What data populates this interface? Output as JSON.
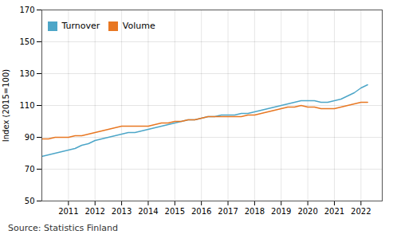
{
  "chart_data": {
    "type": "line",
    "ylabel": "Index (2015=100)",
    "caption": "Source: Statistics Finland",
    "x": [
      2010.0,
      2010.25,
      2010.5,
      2010.75,
      2011.0,
      2011.25,
      2011.5,
      2011.75,
      2012.0,
      2012.25,
      2012.5,
      2012.75,
      2013.0,
      2013.25,
      2013.5,
      2013.75,
      2014.0,
      2014.25,
      2014.5,
      2014.75,
      2015.0,
      2015.25,
      2015.5,
      2015.75,
      2016.0,
      2016.25,
      2016.5,
      2016.75,
      2017.0,
      2017.25,
      2017.5,
      2017.75,
      2018.0,
      2018.25,
      2018.5,
      2018.75,
      2019.0,
      2019.25,
      2019.5,
      2019.75,
      2020.0,
      2020.25,
      2020.5,
      2020.75,
      2021.0,
      2021.25,
      2021.5,
      2021.75,
      2022.0,
      2022.25
    ],
    "series": [
      {
        "name": "Turnover",
        "color": "#4da6c8",
        "values": [
          78,
          79,
          80,
          81,
          82,
          83,
          85,
          86,
          88,
          89,
          90,
          91,
          92,
          93,
          93,
          94,
          95,
          96,
          97,
          98,
          99,
          100,
          101,
          101,
          102,
          103,
          103,
          104,
          104,
          104,
          105,
          105,
          106,
          107,
          108,
          109,
          110,
          111,
          112,
          113,
          113,
          113,
          112,
          112,
          113,
          114,
          116,
          118,
          121,
          123
        ]
      },
      {
        "name": "Volume",
        "color": "#e87722",
        "values": [
          89,
          89,
          90,
          90,
          90,
          91,
          91,
          92,
          93,
          94,
          95,
          96,
          97,
          97,
          97,
          97,
          97,
          98,
          99,
          99,
          100,
          100,
          101,
          101,
          102,
          103,
          103,
          103,
          103,
          103,
          103,
          104,
          104,
          105,
          106,
          107,
          108,
          109,
          109,
          110,
          109,
          109,
          108,
          108,
          108,
          109,
          110,
          111,
          112,
          112
        ]
      }
    ],
    "xlim": [
      2010.0,
      2022.8
    ],
    "xticks": [
      2011,
      2012,
      2013,
      2014,
      2015,
      2016,
      2017,
      2018,
      2019,
      2020,
      2021,
      2022
    ],
    "ylim": [
      50,
      170
    ],
    "yticks": [
      50,
      70,
      90,
      110,
      130,
      150,
      170
    ],
    "grid": true,
    "legend": "upper left"
  }
}
